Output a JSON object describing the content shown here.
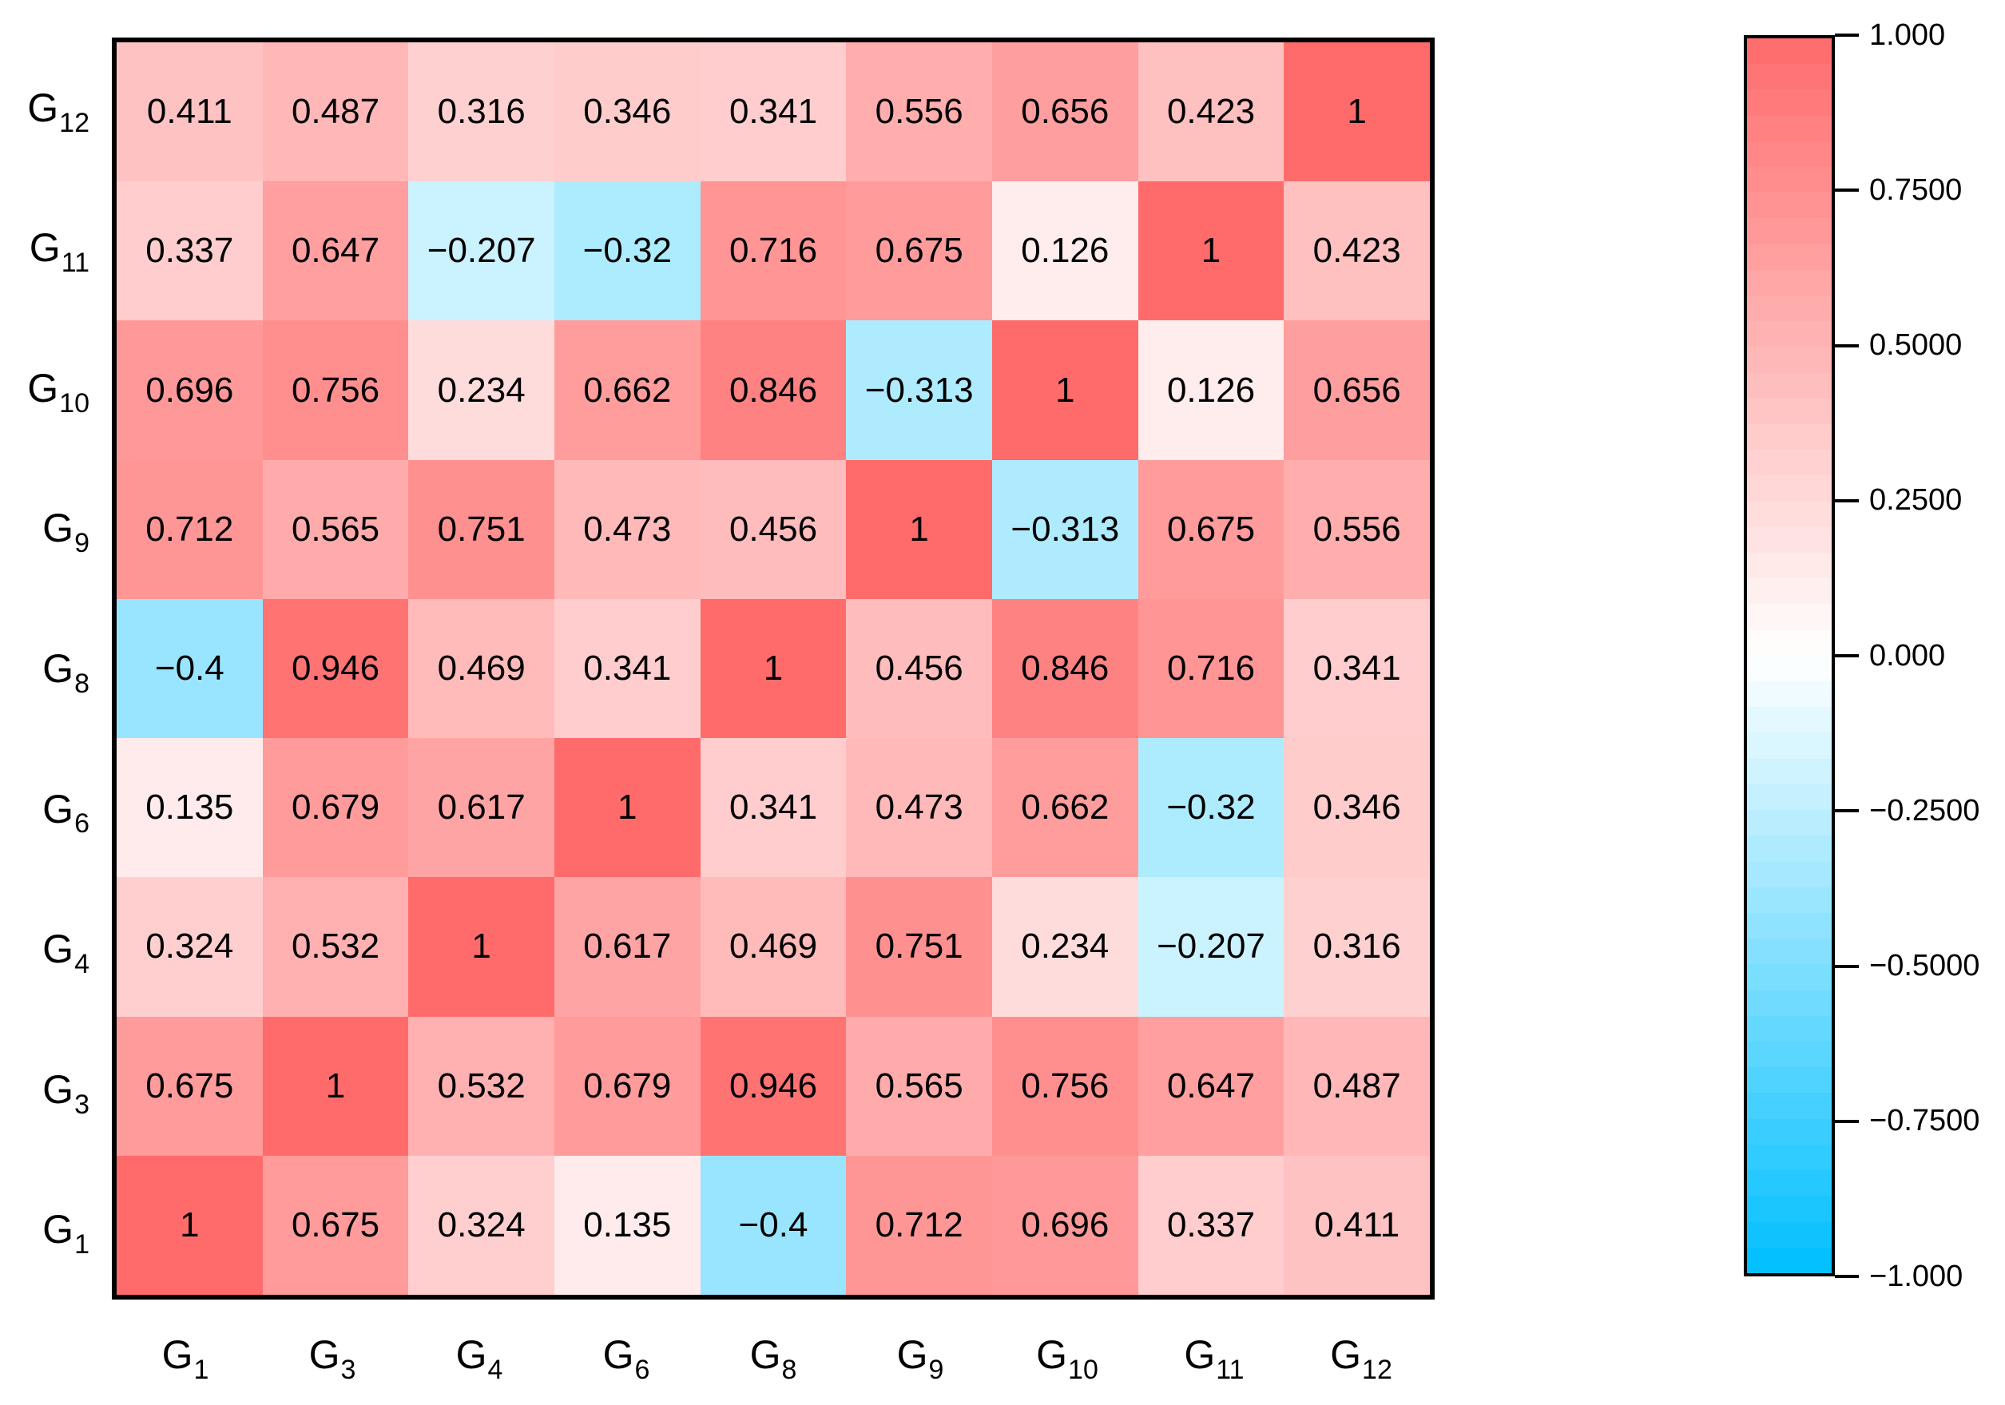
{
  "chart_data": {
    "type": "heatmap",
    "title": "",
    "x_axis": {
      "categories": [
        {
          "base": "G",
          "sub": "1"
        },
        {
          "base": "G",
          "sub": "3"
        },
        {
          "base": "G",
          "sub": "4"
        },
        {
          "base": "G",
          "sub": "6"
        },
        {
          "base": "G",
          "sub": "8"
        },
        {
          "base": "G",
          "sub": "9"
        },
        {
          "base": "G",
          "sub": "10"
        },
        {
          "base": "G",
          "sub": "11"
        },
        {
          "base": "G",
          "sub": "12"
        }
      ]
    },
    "y_axis": {
      "categories_top_to_bottom": [
        {
          "base": "G",
          "sub": "12"
        },
        {
          "base": "G",
          "sub": "11"
        },
        {
          "base": "G",
          "sub": "10"
        },
        {
          "base": "G",
          "sub": "9"
        },
        {
          "base": "G",
          "sub": "8"
        },
        {
          "base": "G",
          "sub": "6"
        },
        {
          "base": "G",
          "sub": "4"
        },
        {
          "base": "G",
          "sub": "3"
        },
        {
          "base": "G",
          "sub": "1"
        }
      ]
    },
    "matrix_rows_top_to_bottom": [
      [
        0.411,
        0.487,
        0.316,
        0.346,
        0.341,
        0.556,
        0.656,
        0.423,
        1
      ],
      [
        0.337,
        0.647,
        -0.207,
        -0.32,
        0.716,
        0.675,
        0.126,
        1,
        0.423
      ],
      [
        0.696,
        0.756,
        0.234,
        0.662,
        0.846,
        -0.313,
        1,
        0.126,
        0.656
      ],
      [
        0.712,
        0.565,
        0.751,
        0.473,
        0.456,
        1,
        -0.313,
        0.675,
        0.556
      ],
      [
        -0.4,
        0.946,
        0.469,
        0.341,
        1,
        0.456,
        0.846,
        0.716,
        0.341
      ],
      [
        0.135,
        0.679,
        0.617,
        1,
        0.341,
        0.473,
        0.662,
        -0.32,
        0.346
      ],
      [
        0.324,
        0.532,
        1,
        0.617,
        0.469,
        0.751,
        0.234,
        -0.207,
        0.316
      ],
      [
        0.675,
        1,
        0.532,
        0.679,
        0.946,
        0.565,
        0.756,
        0.647,
        0.487
      ],
      [
        1,
        0.675,
        0.324,
        0.135,
        -0.4,
        0.712,
        0.696,
        0.337,
        0.411
      ]
    ],
    "value_range": [
      -1,
      1
    ],
    "grid": false,
    "legend_position": "right",
    "colorbar": {
      "tick_labels": [
        "1.000",
        "0.7500",
        "0.5000",
        "0.2500",
        "0.000",
        "−0.2500",
        "−0.5000",
        "−0.7500",
        "−1.000"
      ],
      "tick_values": [
        1.0,
        0.75,
        0.5,
        0.25,
        0.0,
        -0.25,
        -0.5,
        -0.75,
        -1.0
      ],
      "levels": 48
    },
    "colors": {
      "max_positive": "#FF6B6B",
      "zero": "#FFFFFF",
      "min_negative": "#00BFFF",
      "border": "#000000",
      "text": "#000000"
    }
  }
}
